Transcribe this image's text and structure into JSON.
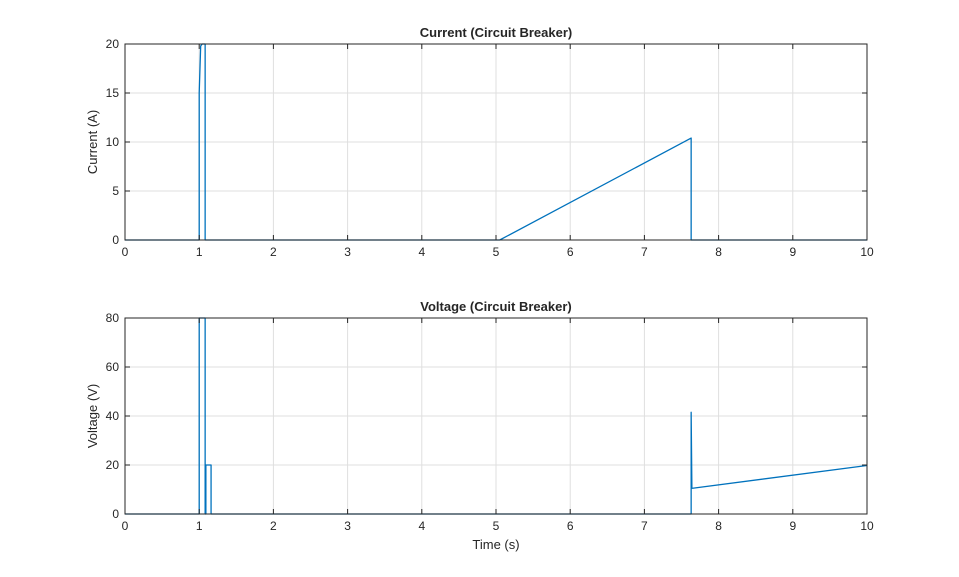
{
  "chart_data": [
    {
      "type": "line",
      "title": "Current (Circuit Breaker)",
      "xlabel": "",
      "ylabel": "Current (A)",
      "xlim": [
        0,
        10
      ],
      "ylim": [
        0,
        20
      ],
      "xticks": [
        0,
        1,
        2,
        3,
        4,
        5,
        6,
        7,
        8,
        9,
        10
      ],
      "yticks": [
        0,
        5,
        10,
        15,
        20
      ],
      "grid": true,
      "color": "#0072bd",
      "series": [
        {
          "x": [
            0,
            1.0,
            1.0,
            1.02,
            1.04,
            1.06,
            1.08,
            1.08,
            1.5,
            5.05,
            7.63,
            7.63,
            10
          ],
          "y": [
            0,
            0,
            15,
            19.8,
            20,
            20,
            20,
            0,
            0,
            0,
            10.4,
            0,
            0
          ]
        }
      ]
    },
    {
      "type": "line",
      "title": "Voltage (Circuit Breaker)",
      "xlabel": "Time (s)",
      "ylabel": "Voltage (V)",
      "xlim": [
        0,
        10
      ],
      "ylim": [
        0,
        80
      ],
      "xticks": [
        0,
        1,
        2,
        3,
        4,
        5,
        6,
        7,
        8,
        9,
        10
      ],
      "yticks": [
        0,
        20,
        40,
        60,
        80
      ],
      "grid": true,
      "color": "#0072bd",
      "series": [
        {
          "x": [
            0,
            1.0,
            1.0,
            1.08,
            1.08,
            1.09,
            1.09,
            1.16,
            1.16,
            7.63,
            7.63,
            7.64,
            7.65,
            10
          ],
          "y": [
            0,
            0,
            80,
            80,
            0,
            0,
            20,
            20,
            0,
            0,
            41.5,
            10.5,
            10.5,
            19.8
          ]
        }
      ]
    }
  ]
}
